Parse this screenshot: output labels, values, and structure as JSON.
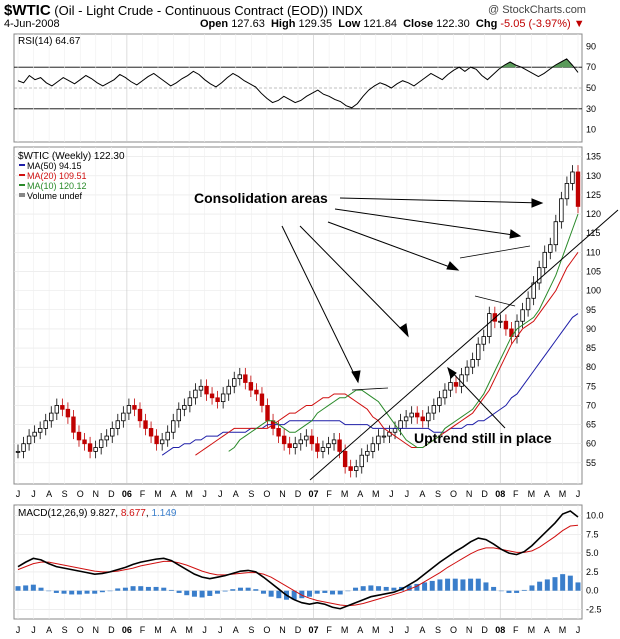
{
  "header": {
    "symbol": "$WTIC",
    "name": "(Oil - Light Crude - Continuous Contract (EOD))",
    "exchange": "INDX",
    "date": "4-Jun-2008",
    "open_label": "Open",
    "open": "127.63",
    "high_label": "High",
    "high": "129.35",
    "low_label": "Low",
    "low": "121.84",
    "close_label": "Close",
    "close": "122.30",
    "chg_label": "Chg",
    "chg": "-5.05 (-3.97%)",
    "logo": "@ StockCharts.com"
  },
  "colors": {
    "up": "#000000",
    "down": "#c00000",
    "ma50": "#1f1fa8",
    "ma20": "#d01010",
    "ma10": "#2a8a2a",
    "volume": "#3a7ecb",
    "rsi_fill": "#5a9a5a"
  },
  "chart_data": [
    {
      "type": "line",
      "title": "RSI(14) 64.67",
      "ylim": [
        0,
        100
      ],
      "yticks": [
        10,
        30,
        50,
        70,
        90
      ],
      "reference_lines": [
        30,
        50,
        70
      ],
      "series": [
        {
          "name": "RSI(14)",
          "values": [
            57,
            55,
            62,
            58,
            60,
            55,
            52,
            56,
            60,
            57,
            54,
            58,
            62,
            59,
            55,
            52,
            55,
            58,
            63,
            60,
            56,
            53,
            57,
            61,
            64,
            60,
            56,
            52,
            55,
            59,
            62,
            66,
            63,
            58,
            54,
            51,
            55,
            60,
            64,
            61,
            57,
            54,
            51,
            45,
            40,
            36,
            38,
            42,
            39,
            36,
            38,
            42,
            45,
            48,
            44,
            42,
            39,
            37,
            33,
            31,
            35,
            42,
            48,
            52,
            55,
            53,
            50,
            54,
            57,
            55,
            52,
            56,
            60,
            64,
            61,
            58,
            63,
            67,
            70,
            66,
            70,
            68,
            62,
            58,
            63,
            68,
            72,
            75,
            72,
            70,
            67,
            64,
            61,
            64,
            68,
            72,
            75,
            78,
            72,
            65
          ]
        }
      ]
    },
    {
      "type": "line",
      "title": "$WTIC (Weekly) 122.30",
      "ylim": [
        50,
        137
      ],
      "yticks": [
        55,
        60,
        65,
        70,
        75,
        80,
        85,
        90,
        95,
        100,
        105,
        110,
        115,
        120,
        125,
        130,
        135
      ],
      "legend": [
        "MA(50) 94.15",
        "MA(20) 109.51",
        "MA(10) 120.12",
        "Volume undef"
      ],
      "series": [
        {
          "name": "$WTIC (Weekly)",
          "values": [
            58,
            60,
            62,
            63,
            64,
            66,
            68,
            70,
            69,
            67,
            63,
            61,
            60,
            58,
            59,
            61,
            62,
            64,
            66,
            68,
            70,
            69,
            66,
            64,
            62,
            60,
            61,
            63,
            66,
            69,
            70,
            72,
            74,
            75,
            73,
            72,
            71,
            73,
            75,
            77,
            78,
            76,
            74,
            73,
            70,
            66,
            64,
            62,
            60,
            59,
            60,
            61,
            62,
            60,
            58,
            59,
            60,
            61,
            58,
            54,
            53,
            54,
            57,
            58,
            60,
            62,
            62,
            63,
            64,
            66,
            67,
            68,
            67,
            66,
            68,
            70,
            72,
            74,
            76,
            75,
            78,
            80,
            82,
            86,
            88,
            94,
            92,
            92,
            90,
            88,
            92,
            95,
            98,
            102,
            106,
            110,
            112,
            118,
            124,
            128,
            131,
            122
          ]
        },
        {
          "name": "MA(50)",
          "values": [
            57,
            58,
            59,
            59,
            60,
            60,
            61,
            61,
            62,
            62,
            62,
            63,
            63,
            63,
            63,
            63,
            64,
            64,
            64,
            65,
            65,
            65,
            65,
            66,
            66,
            66,
            66,
            66,
            66,
            66,
            66,
            66,
            66,
            65,
            65,
            65,
            65,
            65,
            64,
            64,
            64,
            64,
            64,
            64,
            64,
            64,
            64,
            64,
            64,
            63,
            63,
            63,
            64,
            64,
            64,
            65,
            65,
            66,
            66,
            67,
            68,
            69,
            70,
            72,
            73,
            75,
            77,
            79,
            81,
            83,
            85,
            87,
            89,
            91,
            93,
            94
          ]
        },
        {
          "name": "MA(20)",
          "values": [
            57,
            58,
            59,
            60,
            61,
            62,
            63,
            64,
            64,
            64,
            64,
            64,
            64,
            64,
            65,
            66,
            67,
            68,
            68,
            69,
            70,
            70,
            71,
            72,
            72,
            73,
            73,
            73,
            72,
            71,
            70,
            69,
            67,
            66,
            64,
            63,
            62,
            61,
            60,
            59,
            59,
            59,
            60,
            61,
            62,
            63,
            64,
            65,
            66,
            67,
            68,
            70,
            72,
            74,
            77,
            80,
            83,
            86,
            88,
            90,
            91,
            92,
            94,
            96,
            98,
            100,
            103,
            106,
            108,
            110
          ]
        },
        {
          "name": "MA(10)",
          "values": [
            58,
            59,
            61,
            62,
            63,
            64,
            65,
            66,
            66,
            65,
            64,
            63,
            63,
            64,
            65,
            66,
            68,
            69,
            70,
            71,
            72,
            72,
            73,
            74,
            74,
            73,
            72,
            71,
            69,
            67,
            65,
            63,
            61,
            60,
            59,
            59,
            60,
            61,
            62,
            64,
            65,
            66,
            67,
            68,
            69,
            71,
            73,
            76,
            79,
            82,
            85,
            88,
            90,
            91,
            92,
            93,
            95,
            98,
            101,
            104,
            108,
            112,
            116,
            120
          ]
        }
      ],
      "annotations": [
        {
          "text": "Consolidation areas"
        },
        {
          "text": "Uptrend still in place"
        }
      ]
    },
    {
      "type": "line",
      "title": "MACD(12,26,9) 9.827, 8.677, 1.149",
      "ylim": [
        -3.5,
        11
      ],
      "yticks": [
        -2.5,
        0.0,
        2.5,
        5.0,
        7.5,
        10.0
      ],
      "ytick_labels": [
        "-2.5",
        "0.0",
        "2.5",
        "5.0",
        "7.5",
        "10.0"
      ],
      "series": [
        {
          "name": "MACD(12,26,9) 9.827",
          "values": [
            3.2,
            3.8,
            4.3,
            4.1,
            3.6,
            3.2,
            3.0,
            2.8,
            2.6,
            2.4,
            2.2,
            2.3,
            2.5,
            2.8,
            3.1,
            3.5,
            3.8,
            4.0,
            4.2,
            4.3,
            4.0,
            3.4,
            2.8,
            2.2,
            1.8,
            1.6,
            1.8,
            2.0,
            2.3,
            2.6,
            2.7,
            2.5,
            1.8,
            1.0,
            0.2,
            -0.6,
            -1.2,
            -1.6,
            -1.8,
            -1.6,
            -1.8,
            -2.2,
            -2.4,
            -2.0,
            -1.6,
            -1.2,
            -0.8,
            -0.6,
            -0.4,
            -0.2,
            0.2,
            0.8,
            1.4,
            2.2,
            3.0,
            3.8,
            4.5,
            5.2,
            5.8,
            6.5,
            7.0,
            6.8,
            6.2,
            5.5,
            5.0,
            4.8,
            5.2,
            6.0,
            7.0,
            8.0,
            9.0,
            10.2,
            10.6,
            9.8
          ]
        },
        {
          "name": "8.677",
          "values": [
            2.8,
            3.2,
            3.6,
            3.8,
            3.8,
            3.6,
            3.4,
            3.2,
            3.0,
            2.8,
            2.6,
            2.5,
            2.5,
            2.6,
            2.8,
            3.0,
            3.3,
            3.5,
            3.7,
            3.9,
            3.9,
            3.7,
            3.4,
            3.0,
            2.6,
            2.3,
            2.1,
            2.1,
            2.2,
            2.3,
            2.4,
            2.4,
            2.2,
            1.8,
            1.2,
            0.6,
            0.0,
            -0.6,
            -1.0,
            -1.3,
            -1.5,
            -1.7,
            -1.9,
            -2.0,
            -1.9,
            -1.7,
            -1.4,
            -1.1,
            -0.8,
            -0.5,
            -0.2,
            0.2,
            0.6,
            1.2,
            1.8,
            2.4,
            3.1,
            3.7,
            4.3,
            4.9,
            5.4,
            5.7,
            5.7,
            5.5,
            5.3,
            5.1,
            5.1,
            5.3,
            5.8,
            6.5,
            7.2,
            8.0,
            8.6,
            8.7
          ]
        },
        {
          "name": "1.149",
          "values": [
            0.6,
            0.7,
            0.8,
            0.4,
            0.0,
            -0.3,
            -0.4,
            -0.5,
            -0.5,
            -0.4,
            -0.4,
            -0.2,
            0.0,
            0.3,
            0.4,
            0.6,
            0.6,
            0.5,
            0.5,
            0.4,
            0.1,
            -0.3,
            -0.6,
            -0.8,
            -0.9,
            -0.7,
            -0.4,
            -0.1,
            0.2,
            0.4,
            0.4,
            0.2,
            -0.4,
            -0.8,
            -1.0,
            -1.2,
            -1.2,
            -1.0,
            -0.8,
            -0.4,
            -0.3,
            -0.5,
            -0.5,
            0.0,
            0.4,
            0.6,
            0.7,
            0.6,
            0.5,
            0.4,
            0.5,
            0.7,
            0.9,
            1.1,
            1.3,
            1.5,
            1.6,
            1.6,
            1.5,
            1.6,
            1.6,
            1.1,
            0.5,
            0.0,
            -0.3,
            -0.3,
            0.1,
            0.7,
            1.2,
            1.5,
            1.8,
            2.2,
            2.0,
            1.1
          ]
        }
      ]
    }
  ],
  "x_axis": {
    "labels": [
      "J",
      "J",
      "A",
      "S",
      "O",
      "N",
      "D",
      "06",
      "F",
      "M",
      "A",
      "M",
      "J",
      "J",
      "A",
      "S",
      "O",
      "N",
      "D",
      "07",
      "F",
      "M",
      "A",
      "M",
      "J",
      "J",
      "A",
      "S",
      "O",
      "N",
      "D",
      "08",
      "F",
      "M",
      "A",
      "M",
      "J"
    ],
    "bold": [
      "06",
      "07",
      "08"
    ]
  }
}
